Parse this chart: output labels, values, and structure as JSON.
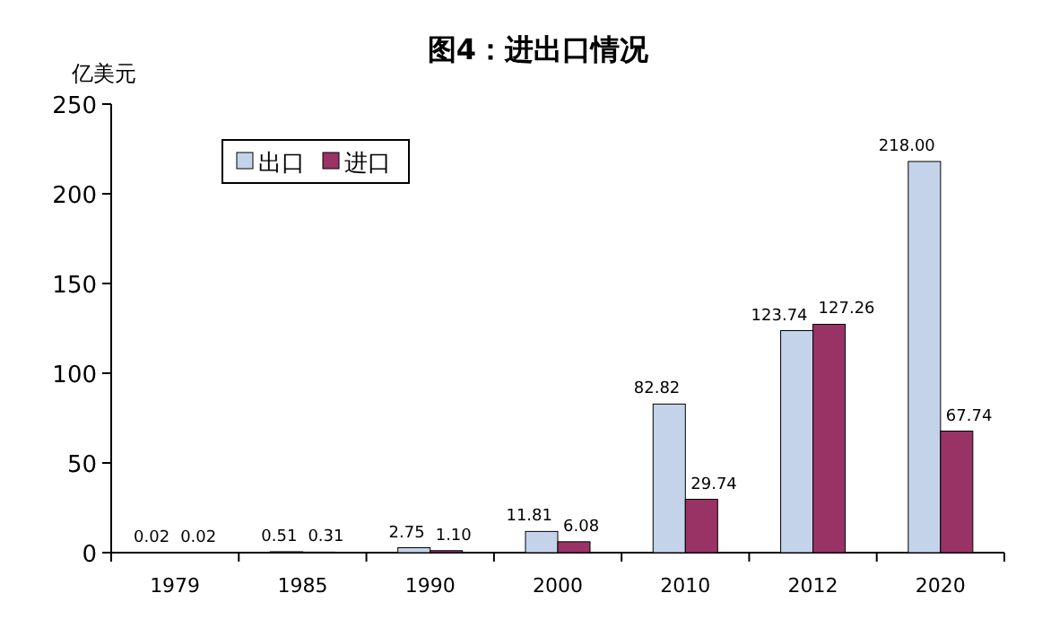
{
  "chart_data": {
    "type": "bar",
    "title": "图4：进出口情况",
    "ylabel": "亿美元",
    "categories": [
      "1979",
      "1985",
      "1990",
      "2000",
      "2010",
      "2012",
      "2020"
    ],
    "series": [
      {
        "name": "出口",
        "color": "#c5d3ea",
        "values": [
          0.02,
          0.51,
          2.75,
          11.81,
          82.82,
          123.74,
          218.0
        ],
        "value_labels": [
          "0.02",
          "0.51",
          "2.75",
          "11.81",
          "82.82",
          "123.74",
          "218.00"
        ]
      },
      {
        "name": "进口",
        "color": "#993366",
        "values": [
          0.02,
          0.31,
          1.1,
          6.08,
          29.74,
          127.26,
          67.74
        ],
        "value_labels": [
          "0.02",
          "0.31",
          "1.10",
          "6.08",
          "29.74",
          "127.26",
          "67.74"
        ]
      }
    ],
    "ylim": [
      0,
      250
    ],
    "yticks": [
      0,
      50,
      100,
      150,
      200,
      250
    ],
    "legend": "top left"
  }
}
